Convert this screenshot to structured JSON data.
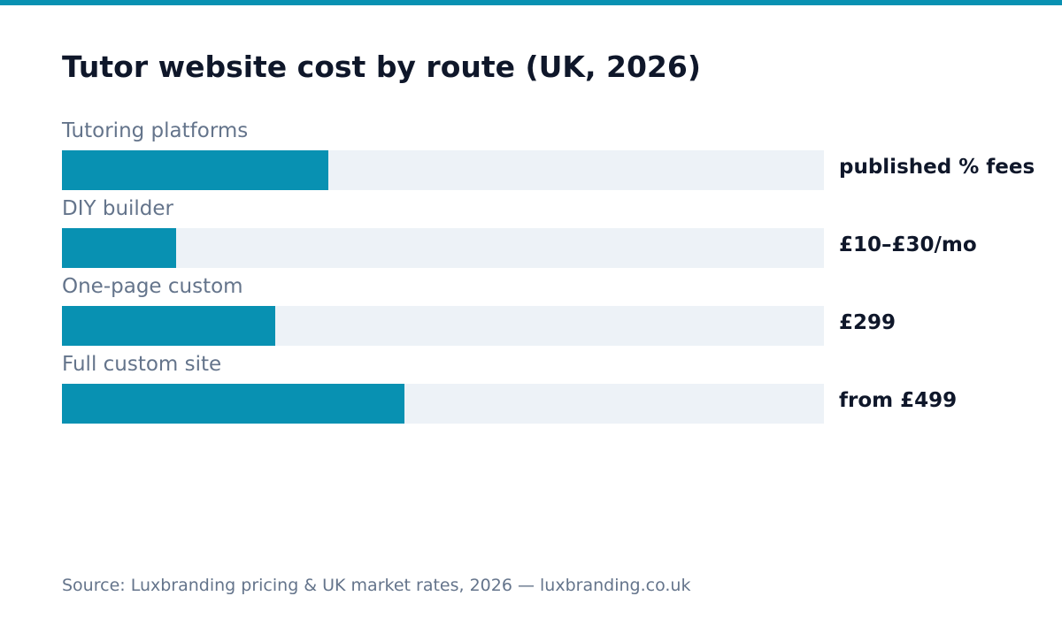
{
  "colors": {
    "accent": "#0891b2",
    "track": "#edf2f7",
    "title": "#0f172a",
    "muted": "#64748b"
  },
  "chart_data": {
    "type": "bar",
    "orientation": "horizontal",
    "title": "Tutor website cost by route (UK, 2026)",
    "categories": [
      "Tutoring platforms",
      "DIY builder",
      "One-page custom",
      "Full custom site"
    ],
    "value_labels": [
      "published % fees",
      "£10–£30/mo",
      "£299",
      "from £499"
    ],
    "values": [
      0.35,
      0.15,
      0.28,
      0.45
    ],
    "ylim": [
      0,
      1
    ],
    "grid": false,
    "legend": "none"
  },
  "footer": {
    "source": "Source: Luxbranding pricing & UK market rates, 2026 — luxbranding.co.uk"
  }
}
